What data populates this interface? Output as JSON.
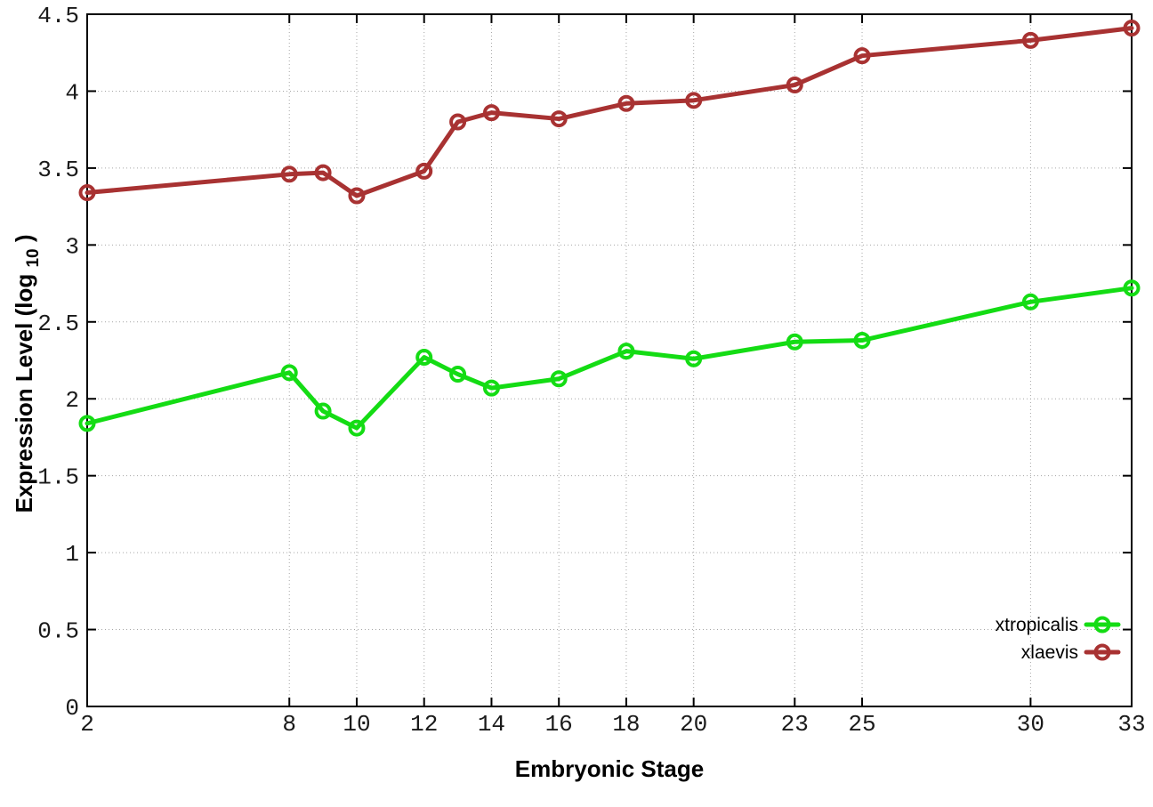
{
  "chart_data": {
    "type": "line",
    "title": "",
    "xlabel": "Embryonic Stage",
    "ylabel": "Expression Level (log10)",
    "ylabel_parts": {
      "main": "Expression Level (log",
      "sub": "10",
      "close": ")"
    },
    "xlim": [
      2,
      33
    ],
    "ylim": [
      0,
      4.5
    ],
    "xticks": [
      2,
      8,
      10,
      12,
      14,
      16,
      18,
      20,
      23,
      25,
      30,
      33
    ],
    "xtick_labels": [
      "2",
      "8",
      "10",
      "12",
      "14",
      "16",
      "18",
      "20",
      "23",
      "25",
      "30",
      "33"
    ],
    "yticks": [
      0,
      0.5,
      1,
      1.5,
      2,
      2.5,
      3,
      3.5,
      4,
      4.5
    ],
    "ytick_labels": [
      "0",
      "0.5",
      "1",
      "1.5",
      "2",
      "2.5",
      "3",
      "3.5",
      "4",
      "4.5"
    ],
    "grid": true,
    "grid_style": "dotted",
    "legend_position": "inside-bottom-right",
    "marker": "open-circle",
    "x": [
      2,
      8,
      9,
      10,
      12,
      13,
      14,
      16,
      18,
      20,
      23,
      25,
      30,
      33
    ],
    "series": [
      {
        "name": "xtropicalis",
        "color": "#14dc14",
        "values": [
          1.84,
          2.17,
          1.92,
          1.81,
          2.27,
          2.16,
          2.07,
          2.13,
          2.31,
          2.26,
          2.37,
          2.38,
          2.63,
          2.72
        ]
      },
      {
        "name": "xlaevis",
        "color": "#a83232",
        "values": [
          3.34,
          3.46,
          3.47,
          3.32,
          3.48,
          3.8,
          3.86,
          3.82,
          3.92,
          3.94,
          4.04,
          4.23,
          4.33,
          4.41
        ]
      }
    ],
    "colors": {
      "background": "#ffffff",
      "grid": "#a6a6a6",
      "axis": "#000000",
      "tick_text": "#1a1a1a"
    }
  }
}
